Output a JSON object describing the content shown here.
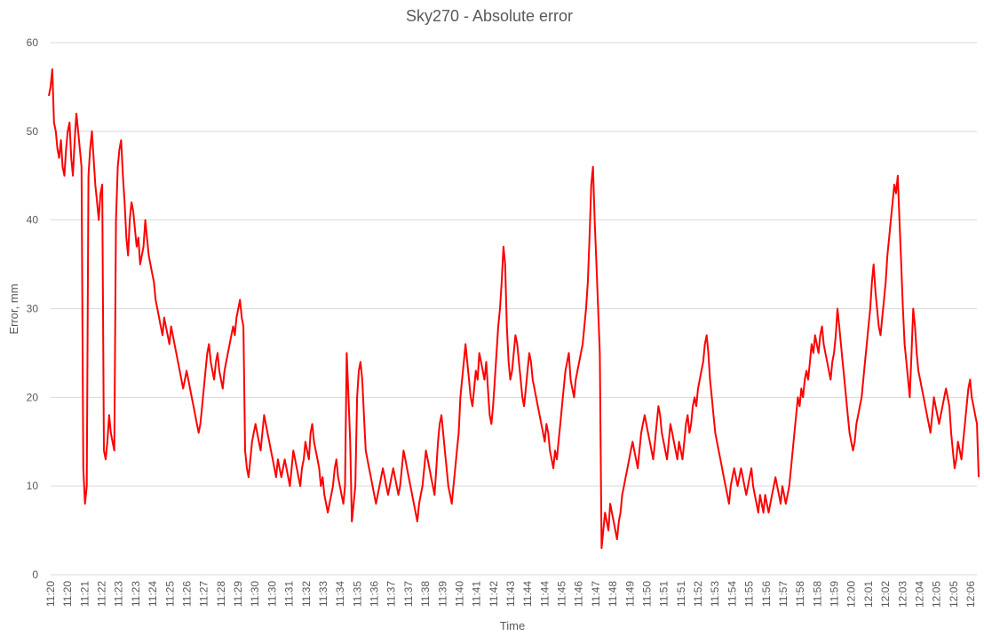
{
  "chart_data": {
    "type": "line",
    "title": "Sky270 - Absolute error",
    "xlabel": "Time",
    "ylabel": "Error, mm",
    "ylim": [
      0,
      60
    ],
    "y_ticks": [
      "0",
      "10",
      "20",
      "30",
      "40",
      "50",
      "60"
    ],
    "x_ticks": [
      "11:20",
      "11:20",
      "11:21",
      "11:22",
      "11:23",
      "11:23",
      "11:24",
      "11:25",
      "11:26",
      "11:27",
      "11:28",
      "11:29",
      "11:30",
      "11:30",
      "11:31",
      "11:32",
      "11:33",
      "11:34",
      "11:35",
      "11:36",
      "11:37",
      "11:37",
      "11:38",
      "11:39",
      "11:40",
      "11:41",
      "11:42",
      "11:43",
      "11:44",
      "11:44",
      "11:45",
      "11:46",
      "11:47",
      "11:48",
      "11:49",
      "11:50",
      "11:51",
      "11:51",
      "11:52",
      "11:53",
      "11:54",
      "11:55",
      "11:56",
      "11:57",
      "11:58",
      "11:58",
      "11:59",
      "12:00",
      "12:01",
      "12:02",
      "12:03",
      "12:04",
      "12:05",
      "12:05",
      "12:06"
    ],
    "grid": true,
    "legend": "none",
    "series": [
      {
        "color": "#ff0000",
        "values": [
          54,
          55,
          57,
          51,
          50,
          48,
          47,
          49,
          46,
          45,
          48,
          50,
          51,
          47,
          45,
          49,
          52,
          50,
          48,
          46,
          12,
          8,
          10,
          45,
          48,
          50,
          47,
          44,
          42,
          40,
          43,
          44,
          14,
          13,
          15,
          18,
          16,
          15,
          14,
          40,
          46,
          48,
          49,
          45,
          42,
          38,
          36,
          40,
          42,
          41,
          39,
          37,
          38,
          35,
          36,
          37,
          40,
          38,
          36,
          35,
          34,
          33,
          31,
          30,
          29,
          28,
          27,
          29,
          28,
          27,
          26,
          28,
          27,
          26,
          25,
          24,
          23,
          22,
          21,
          22,
          23,
          22,
          21,
          20,
          19,
          18,
          17,
          16,
          17,
          19,
          21,
          23,
          25,
          26,
          24,
          23,
          22,
          24,
          25,
          23,
          22,
          21,
          23,
          24,
          25,
          26,
          27,
          28,
          27,
          29,
          30,
          31,
          29,
          28,
          14,
          12,
          11,
          13,
          15,
          16,
          17,
          16,
          15,
          14,
          16,
          18,
          17,
          16,
          15,
          14,
          13,
          12,
          11,
          13,
          12,
          11,
          12,
          13,
          12,
          11,
          10,
          12,
          14,
          13,
          12,
          11,
          10,
          12,
          13,
          15,
          14,
          13,
          16,
          17,
          15,
          14,
          13,
          12,
          10,
          11,
          9,
          8,
          7,
          8,
          9,
          10,
          12,
          13,
          11,
          10,
          9,
          8,
          10,
          25,
          20,
          15,
          6,
          8,
          10,
          20,
          23,
          24,
          22,
          18,
          14,
          13,
          12,
          11,
          10,
          9,
          8,
          9,
          10,
          11,
          12,
          11,
          10,
          9,
          10,
          11,
          12,
          11,
          10,
          9,
          10,
          12,
          14,
          13,
          12,
          11,
          10,
          9,
          8,
          7,
          6,
          8,
          9,
          10,
          12,
          14,
          13,
          12,
          11,
          10,
          9,
          12,
          15,
          17,
          18,
          16,
          14,
          12,
          10,
          9,
          8,
          10,
          12,
          14,
          16,
          20,
          22,
          24,
          26,
          24,
          22,
          20,
          19,
          21,
          23,
          22,
          25,
          24,
          23,
          22,
          24,
          21,
          18,
          17,
          19,
          22,
          25,
          28,
          30,
          33,
          37,
          35,
          28,
          24,
          22,
          23,
          25,
          27,
          26,
          24,
          22,
          20,
          19,
          21,
          23,
          25,
          24,
          22,
          21,
          20,
          19,
          18,
          17,
          16,
          15,
          17,
          16,
          14,
          13,
          12,
          14,
          13,
          15,
          17,
          19,
          21,
          23,
          24,
          25,
          22,
          21,
          20,
          22,
          23,
          24,
          25,
          26,
          28,
          30,
          33,
          38,
          44,
          46,
          40,
          35,
          30,
          25,
          3,
          5,
          7,
          6,
          5,
          8,
          7,
          6,
          5,
          4,
          6,
          7,
          9,
          10,
          11,
          12,
          13,
          14,
          15,
          14,
          13,
          12,
          14,
          16,
          17,
          18,
          17,
          16,
          15,
          14,
          13,
          15,
          17,
          19,
          18,
          16,
          15,
          14,
          13,
          15,
          17,
          16,
          15,
          14,
          13,
          15,
          14,
          13,
          15,
          17,
          18,
          16,
          17,
          19,
          20,
          19,
          21,
          22,
          23,
          24,
          26,
          27,
          25,
          22,
          20,
          18,
          16,
          15,
          14,
          13,
          12,
          11,
          10,
          9,
          8,
          10,
          11,
          12,
          11,
          10,
          11,
          12,
          11,
          10,
          9,
          10,
          11,
          12,
          10,
          9,
          8,
          7,
          9,
          8,
          7,
          9,
          8,
          7,
          8,
          9,
          10,
          11,
          10,
          9,
          8,
          10,
          9,
          8,
          9,
          10,
          12,
          14,
          16,
          18,
          20,
          19,
          21,
          20,
          22,
          23,
          22,
          24,
          26,
          25,
          27,
          26,
          25,
          27,
          28,
          26,
          25,
          24,
          23,
          22,
          24,
          25,
          27,
          30,
          28,
          26,
          24,
          22,
          20,
          18,
          16,
          15,
          14,
          15,
          17,
          18,
          19,
          20,
          22,
          24,
          26,
          28,
          30,
          33,
          35,
          32,
          30,
          28,
          27,
          29,
          31,
          33,
          36,
          38,
          40,
          42,
          44,
          43,
          45,
          40,
          35,
          30,
          26,
          24,
          22,
          20,
          25,
          30,
          28,
          25,
          23,
          22,
          21,
          20,
          19,
          18,
          17,
          16,
          18,
          20,
          19,
          18,
          17,
          18,
          19,
          20,
          21,
          20,
          19,
          16,
          14,
          12,
          13,
          15,
          14,
          13,
          15,
          17,
          19,
          21,
          22,
          20,
          19,
          18,
          17,
          11
        ]
      }
    ]
  }
}
